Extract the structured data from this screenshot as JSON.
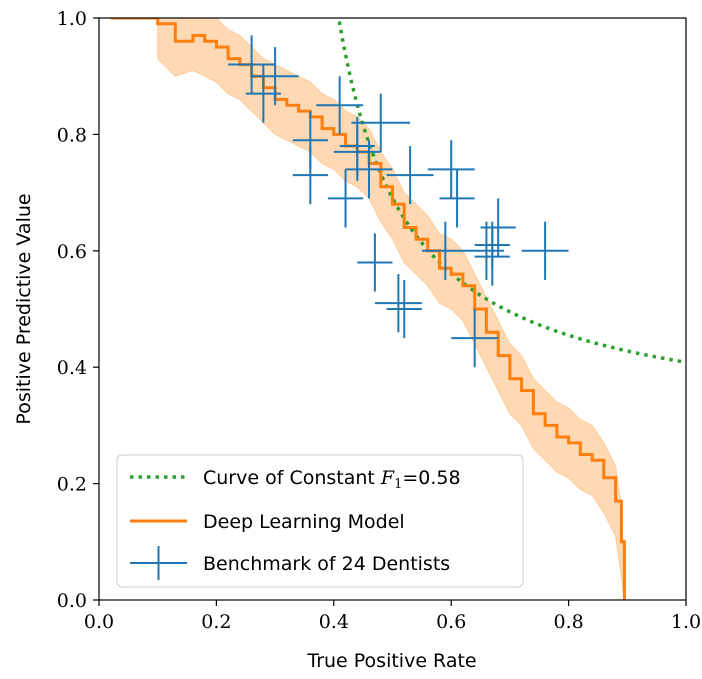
{
  "chart_data": {
    "type": "line",
    "title": "",
    "xlabel": "True Positive Rate",
    "ylabel": "Positive Predictive Value",
    "xlim": [
      0.0,
      1.0
    ],
    "ylim": [
      0.0,
      1.0
    ],
    "xticks": [
      "0.0",
      "0.2",
      "0.4",
      "0.6",
      "0.8",
      "1.0"
    ],
    "yticks": [
      "0.0",
      "0.2",
      "0.4",
      "0.6",
      "0.8",
      "1.0"
    ],
    "xtick_values": [
      0.0,
      0.2,
      0.4,
      0.6,
      0.8,
      1.0
    ],
    "ytick_values": [
      0.0,
      0.2,
      0.4,
      0.6,
      0.8,
      1.0
    ],
    "grid": false,
    "legend_position": "bottom-left",
    "colors": {
      "f1_curve": "#2ca02c",
      "model": "#ff7f0e",
      "band": "#ffcc99",
      "dentists": "#1f77b4"
    },
    "f1_curve": {
      "label_prefix": "Curve of Constant ",
      "label_symbol": "F",
      "label_subscript": "1",
      "label_suffix": "=0.58",
      "f1": 0.58
    },
    "model": {
      "name": "Deep Learning Model",
      "x": [
        0.1,
        0.1,
        0.13,
        0.16,
        0.18,
        0.2,
        0.22,
        0.24,
        0.26,
        0.28,
        0.3,
        0.32,
        0.34,
        0.36,
        0.38,
        0.4,
        0.42,
        0.44,
        0.46,
        0.48,
        0.5,
        0.52,
        0.54,
        0.56,
        0.58,
        0.6,
        0.62,
        0.64,
        0.66,
        0.68,
        0.7,
        0.72,
        0.74,
        0.76,
        0.78,
        0.8,
        0.82,
        0.84,
        0.86,
        0.88,
        0.89,
        0.895
      ],
      "y": [
        1.0,
        0.99,
        0.96,
        0.97,
        0.96,
        0.95,
        0.93,
        0.92,
        0.9,
        0.88,
        0.86,
        0.85,
        0.84,
        0.83,
        0.81,
        0.8,
        0.78,
        0.77,
        0.75,
        0.71,
        0.68,
        0.64,
        0.62,
        0.6,
        0.57,
        0.56,
        0.54,
        0.5,
        0.46,
        0.42,
        0.38,
        0.36,
        0.32,
        0.3,
        0.28,
        0.27,
        0.25,
        0.24,
        0.21,
        0.17,
        0.1,
        0.0
      ],
      "lower": [
        0.95,
        0.93,
        0.9,
        0.91,
        0.9,
        0.89,
        0.87,
        0.86,
        0.84,
        0.82,
        0.8,
        0.79,
        0.78,
        0.77,
        0.75,
        0.74,
        0.72,
        0.71,
        0.69,
        0.65,
        0.62,
        0.58,
        0.56,
        0.54,
        0.51,
        0.5,
        0.48,
        0.44,
        0.4,
        0.36,
        0.32,
        0.3,
        0.26,
        0.24,
        0.22,
        0.21,
        0.19,
        0.18,
        0.15,
        0.11,
        0.04,
        0.0
      ],
      "upper": [
        1.0,
        1.0,
        1.0,
        1.0,
        1.0,
        1.0,
        0.98,
        0.97,
        0.95,
        0.93,
        0.92,
        0.91,
        0.9,
        0.89,
        0.87,
        0.86,
        0.84,
        0.83,
        0.81,
        0.77,
        0.74,
        0.7,
        0.68,
        0.66,
        0.63,
        0.62,
        0.6,
        0.56,
        0.52,
        0.48,
        0.44,
        0.42,
        0.38,
        0.36,
        0.34,
        0.33,
        0.31,
        0.3,
        0.27,
        0.23,
        0.16,
        0.05
      ]
    },
    "dentists": {
      "name": "Benchmark of 24 Dentists",
      "points": [
        {
          "x": 0.26,
          "y": 0.92,
          "xerr": 0.04,
          "yerr": 0.05
        },
        {
          "x": 0.3,
          "y": 0.9,
          "xerr": 0.04,
          "yerr": 0.05
        },
        {
          "x": 0.28,
          "y": 0.87,
          "xerr": 0.03,
          "yerr": 0.05
        },
        {
          "x": 0.41,
          "y": 0.85,
          "xerr": 0.04,
          "yerr": 0.05
        },
        {
          "x": 0.48,
          "y": 0.82,
          "xerr": 0.05,
          "yerr": 0.05
        },
        {
          "x": 0.36,
          "y": 0.79,
          "xerr": 0.03,
          "yerr": 0.05
        },
        {
          "x": 0.44,
          "y": 0.77,
          "xerr": 0.04,
          "yerr": 0.05
        },
        {
          "x": 0.46,
          "y": 0.74,
          "xerr": 0.04,
          "yerr": 0.05
        },
        {
          "x": 0.53,
          "y": 0.73,
          "xerr": 0.04,
          "yerr": 0.05
        },
        {
          "x": 0.6,
          "y": 0.74,
          "xerr": 0.04,
          "yerr": 0.05
        },
        {
          "x": 0.36,
          "y": 0.73,
          "xerr": 0.03,
          "yerr": 0.05
        },
        {
          "x": 0.42,
          "y": 0.69,
          "xerr": 0.03,
          "yerr": 0.05
        },
        {
          "x": 0.61,
          "y": 0.69,
          "xerr": 0.03,
          "yerr": 0.05
        },
        {
          "x": 0.68,
          "y": 0.64,
          "xerr": 0.03,
          "yerr": 0.05
        },
        {
          "x": 0.59,
          "y": 0.6,
          "xerr": 0.04,
          "yerr": 0.05
        },
        {
          "x": 0.66,
          "y": 0.6,
          "xerr": 0.03,
          "yerr": 0.05
        },
        {
          "x": 0.67,
          "y": 0.59,
          "xerr": 0.03,
          "yerr": 0.05
        },
        {
          "x": 0.76,
          "y": 0.6,
          "xerr": 0.04,
          "yerr": 0.05
        },
        {
          "x": 0.47,
          "y": 0.58,
          "xerr": 0.03,
          "yerr": 0.05
        },
        {
          "x": 0.51,
          "y": 0.51,
          "xerr": 0.04,
          "yerr": 0.05
        },
        {
          "x": 0.52,
          "y": 0.5,
          "xerr": 0.03,
          "yerr": 0.05
        },
        {
          "x": 0.64,
          "y": 0.45,
          "xerr": 0.04,
          "yerr": 0.05
        },
        {
          "x": 0.67,
          "y": 0.61,
          "xerr": 0.03,
          "yerr": 0.04
        },
        {
          "x": 0.44,
          "y": 0.78,
          "xerr": 0.03,
          "yerr": 0.05
        }
      ]
    }
  }
}
